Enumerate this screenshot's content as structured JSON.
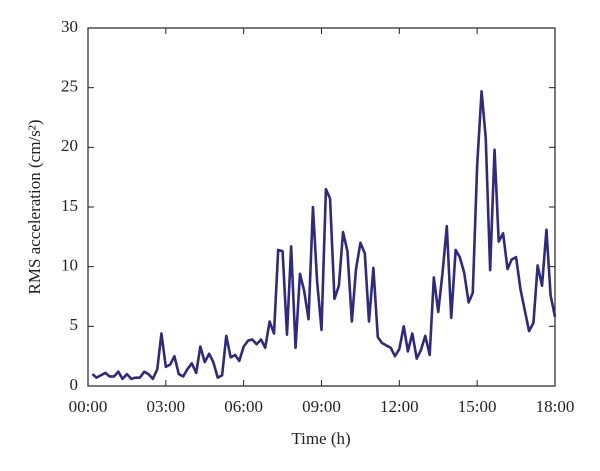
{
  "chart_data": {
    "type": "line",
    "xlabel": "Time (h)",
    "ylabel": "RMS acceleration (cm/s²)",
    "x": [
      0.17,
      0.33,
      0.5,
      0.67,
      0.83,
      1,
      1.17,
      1.33,
      1.5,
      1.67,
      1.83,
      2,
      2.17,
      2.33,
      2.5,
      2.67,
      2.83,
      3,
      3.17,
      3.33,
      3.5,
      3.67,
      3.83,
      4,
      4.17,
      4.33,
      4.5,
      4.67,
      4.83,
      5,
      5.17,
      5.33,
      5.5,
      5.67,
      5.83,
      6,
      6.17,
      6.33,
      6.5,
      6.67,
      6.83,
      7,
      7.17,
      7.33,
      7.5,
      7.67,
      7.83,
      8,
      8.17,
      8.33,
      8.5,
      8.67,
      8.83,
      9,
      9.17,
      9.33,
      9.5,
      9.67,
      9.83,
      10,
      10.17,
      10.33,
      10.5,
      10.67,
      10.83,
      11,
      11.17,
      11.33,
      11.5,
      11.67,
      11.83,
      12,
      12.17,
      12.33,
      12.5,
      12.67,
      12.83,
      13,
      13.17,
      13.33,
      13.5,
      13.67,
      13.83,
      14,
      14.17,
      14.33,
      14.5,
      14.67,
      14.83,
      15,
      15.17,
      15.33,
      15.5,
      15.67,
      15.83,
      16,
      16.17,
      16.33,
      16.5,
      16.67,
      16.83,
      17,
      17.17,
      17.33,
      17.5,
      17.67,
      17.83,
      18
    ],
    "series": [
      {
        "color": "#2e2a82",
        "values": [
          1.0,
          0.7,
          0.9,
          1.1,
          0.8,
          0.8,
          1.2,
          0.6,
          1.0,
          0.6,
          0.7,
          0.7,
          1.2,
          1.0,
          0.6,
          1.4,
          4.4,
          1.6,
          1.8,
          2.5,
          1.0,
          0.8,
          1.4,
          1.9,
          1.1,
          3.3,
          2.0,
          2.7,
          2.0,
          0.7,
          0.9,
          4.2,
          2.4,
          2.6,
          2.1,
          3.3,
          3.8,
          3.9,
          3.5,
          3.9,
          3.2,
          5.4,
          4.4,
          11.4,
          11.3,
          4.3,
          11.7,
          3.2,
          9.4,
          8.0,
          5.6,
          15.0,
          8.8,
          4.7,
          16.5,
          15.7,
          7.3,
          8.4,
          12.9,
          11.3,
          5.4,
          9.8,
          12.0,
          11.1,
          5.4,
          9.9,
          4.1,
          3.6,
          3.4,
          3.2,
          2.5,
          3.1,
          5.0,
          2.9,
          4.4,
          2.3,
          3.0,
          4.2,
          2.6,
          9.1,
          6.2,
          9.6,
          13.4,
          5.7,
          11.4,
          10.8,
          9.5,
          7.0,
          7.8,
          18.5,
          24.7,
          20.8,
          9.7,
          19.8,
          12.1,
          12.8,
          9.8,
          10.6,
          10.8,
          8.1,
          6.4,
          4.6,
          5.3,
          10.1,
          8.4,
          13.1,
          7.6,
          5.8
        ]
      }
    ],
    "xlim": [
      0,
      18
    ],
    "xticks": [
      {
        "value": 0,
        "label": "00:00"
      },
      {
        "value": 3,
        "label": "03:00"
      },
      {
        "value": 6,
        "label": "06:00"
      },
      {
        "value": 9,
        "label": "09:00"
      },
      {
        "value": 12,
        "label": "12:00"
      },
      {
        "value": 15,
        "label": "15:00"
      },
      {
        "value": 18,
        "label": "18:00"
      }
    ],
    "ylim": [
      0,
      30
    ],
    "yticks": [
      0,
      5,
      10,
      15,
      20,
      25,
      30
    ],
    "grid": false
  }
}
